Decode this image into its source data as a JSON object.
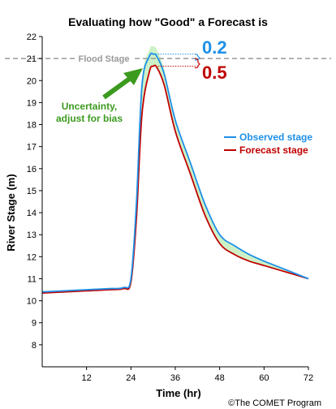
{
  "chart_data": {
    "type": "line",
    "title": "Evaluating how \"Good\" a Forecast is",
    "xlabel": "Time (hr)",
    "ylabel": "River Stage (m)",
    "xlim": [
      0,
      72
    ],
    "ylim": [
      7,
      22
    ],
    "x_ticks": [
      12,
      24,
      36,
      48,
      60,
      72
    ],
    "y_ticks": [
      8,
      9,
      10,
      11,
      12,
      13,
      14,
      15,
      16,
      17,
      18,
      19,
      20,
      21,
      22
    ],
    "grid": false,
    "legend_position": "right",
    "flood_stage": {
      "label": "Flood Stage",
      "value": 21
    },
    "series": [
      {
        "name": "Observed stage",
        "color": "#1e90e8",
        "x": [
          0,
          6,
          12,
          18,
          22,
          24,
          25.5,
          27,
          29,
          30,
          31,
          33,
          36,
          40,
          44,
          48,
          52,
          56,
          60,
          66,
          72
        ],
        "y": [
          10.4,
          10.45,
          10.5,
          10.55,
          10.6,
          11.0,
          14.5,
          19.8,
          21.1,
          21.2,
          21.1,
          20.3,
          18.2,
          16.3,
          14.4,
          13.0,
          12.5,
          12.1,
          11.8,
          11.4,
          11.0
        ]
      },
      {
        "name": "Forecast stage",
        "color": "#c00000",
        "x": [
          0,
          6,
          12,
          18,
          22,
          24,
          25.5,
          27,
          29,
          30,
          31,
          33,
          36,
          40,
          44,
          48,
          52,
          56,
          60,
          66,
          72
        ],
        "y": [
          10.35,
          10.4,
          10.45,
          10.5,
          10.55,
          10.85,
          13.8,
          18.5,
          20.4,
          20.65,
          20.6,
          19.8,
          17.7,
          15.8,
          13.9,
          12.6,
          12.1,
          11.8,
          11.6,
          11.3,
          11.0
        ]
      }
    ],
    "annotations": {
      "observed_difference": "0.2",
      "observed_difference_color": "#1e90e8",
      "forecast_difference": "0.5",
      "forecast_difference_color": "#c00000",
      "uncertainty_text": [
        "Uncertainty,",
        "adjust for bias"
      ],
      "uncertainty_color": "#3c9a1e",
      "band_color": "#c8f0c0"
    },
    "credit": "©The COMET Program"
  }
}
